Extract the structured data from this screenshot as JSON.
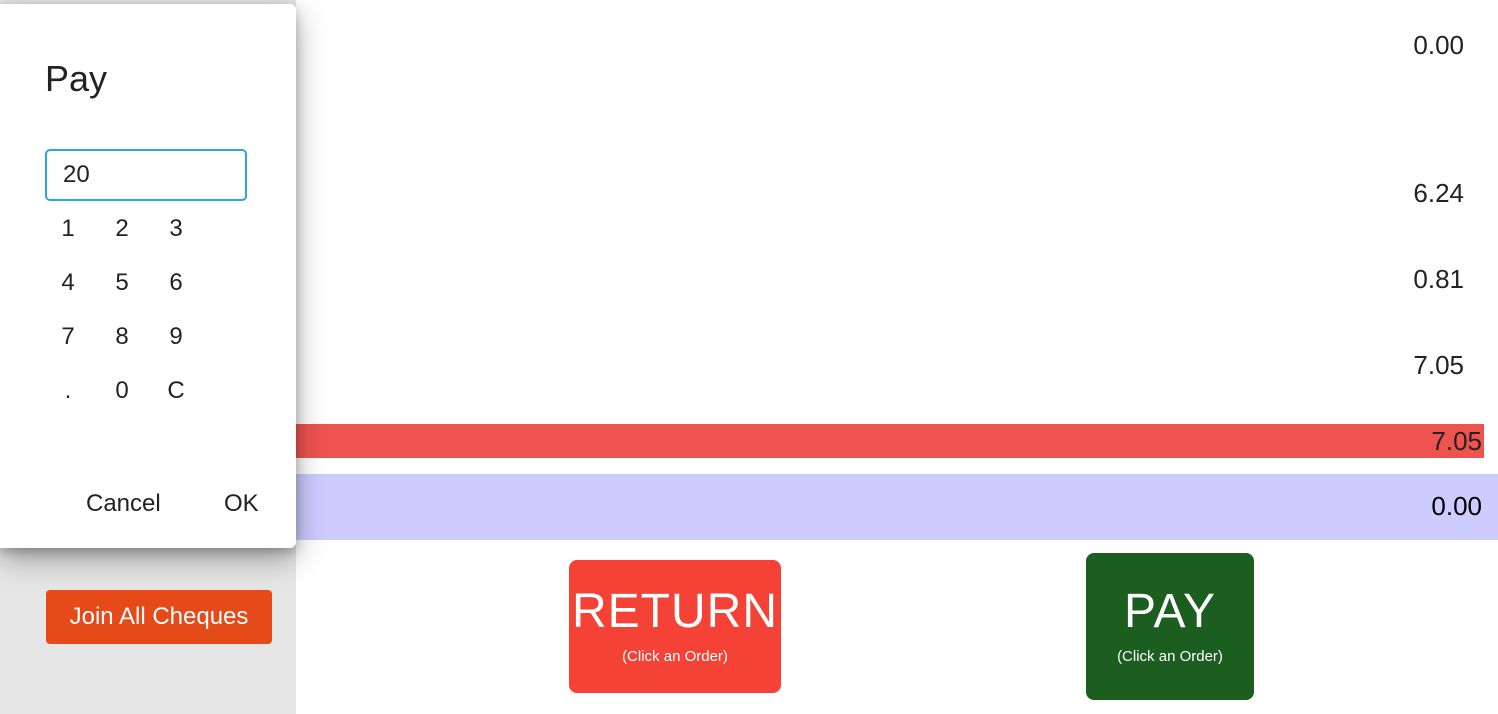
{
  "summary": {
    "amounts": [
      "0.00",
      "6.24",
      "0.81",
      "7.05"
    ],
    "due_amount": "7.05",
    "change_amount": "0.00"
  },
  "actions": {
    "join_label": "Join All Cheques",
    "return_label": "RETURN",
    "return_hint": "(Click an Order)",
    "pay_label": "PAY",
    "pay_hint": "(Click an Order)"
  },
  "dialog": {
    "title": "Pay",
    "input_value": "20",
    "keys": [
      "1",
      "2",
      "3",
      "4",
      "5",
      "6",
      "7",
      "8",
      "9",
      ".",
      "0",
      "C"
    ],
    "cancel_label": "Cancel",
    "ok_label": "OK"
  },
  "colors": {
    "return": "#f44336",
    "pay": "#1b5e20",
    "join": "#e64a19",
    "due_bar": "#ef5350",
    "change_bar": "#ccccff",
    "input_border": "#2aa5e4"
  }
}
